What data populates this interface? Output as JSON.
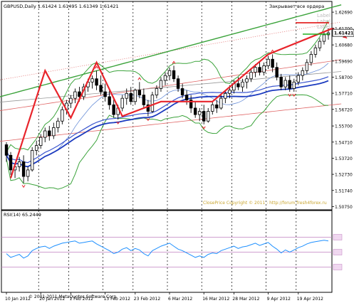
{
  "header": {
    "symbol_line": "GBPUSD,Daily  1.61424 1.61495 1.61349 1.61421",
    "close_all_label": "Закрывает все ордера"
  },
  "labels_box": [
    "Label",
    "Label",
    "Label"
  ],
  "current_price": "1.61421",
  "watermark": "ClosePrice Copyright © 2011 : http://forum.fresh4forex.ru",
  "copyright": "© 2001-2011 MetaQuotes Software Corp.",
  "colors": {
    "bull": "#ffffff",
    "bear": "#000000",
    "zigzag": "#e8242b",
    "ma_blue": "#1c3bbf",
    "bands_green": "#3ba33b",
    "gold": "#d4a531",
    "grid": "#888888",
    "rsi": "#1e90ff",
    "rsi_levels": "#c080c0"
  },
  "chart_data": [
    {
      "type": "candlestick",
      "title": "GBPUSD,Daily",
      "ylim": [
        1.5055,
        1.6335
      ],
      "y_ticks": [
        1.6269,
        1.617,
        1.6068,
        1.5969,
        1.587,
        1.5771,
        1.5672,
        1.557,
        1.5471,
        1.5372,
        1.5273,
        1.5174,
        1.5075
      ],
      "x_ticks": [
        "10 Jan 2012",
        "20 Jan 2012",
        "1 Feb 2012",
        "13 Feb 2012",
        "23 Feb 2012",
        "6 Mar 2012",
        "16 Mar 2012",
        "28 Mar 2012",
        "9 Apr 2012",
        "19 Apr 2012"
      ],
      "current_price": 1.61421,
      "candles": [
        [
          1.5455,
          1.547,
          1.535,
          1.539
        ],
        [
          1.539,
          1.541,
          1.527,
          1.53
        ],
        [
          1.53,
          1.534,
          1.525,
          1.532
        ],
        [
          1.532,
          1.538,
          1.529,
          1.535
        ],
        [
          1.535,
          1.539,
          1.522,
          1.526
        ],
        [
          1.526,
          1.532,
          1.523,
          1.53
        ],
        [
          1.53,
          1.544,
          1.529,
          1.542
        ],
        [
          1.542,
          1.548,
          1.539,
          1.545
        ],
        [
          1.545,
          1.552,
          1.543,
          1.55
        ],
        [
          1.55,
          1.556,
          1.547,
          1.554
        ],
        [
          1.554,
          1.557,
          1.548,
          1.551
        ],
        [
          1.551,
          1.559,
          1.549,
          1.556
        ],
        [
          1.556,
          1.562,
          1.553,
          1.56
        ],
        [
          1.56,
          1.569,
          1.558,
          1.567
        ],
        [
          1.567,
          1.573,
          1.564,
          1.571
        ],
        [
          1.571,
          1.576,
          1.568,
          1.574
        ],
        [
          1.574,
          1.58,
          1.571,
          1.578
        ],
        [
          1.578,
          1.581,
          1.572,
          1.575
        ],
        [
          1.575,
          1.583,
          1.573,
          1.581
        ],
        [
          1.581,
          1.586,
          1.578,
          1.584
        ],
        [
          1.584,
          1.588,
          1.58,
          1.586
        ],
        [
          1.586,
          1.591,
          1.579,
          1.582
        ],
        [
          1.582,
          1.588,
          1.576,
          1.578
        ],
        [
          1.578,
          1.583,
          1.572,
          1.575
        ],
        [
          1.575,
          1.579,
          1.567,
          1.57
        ],
        [
          1.57,
          1.574,
          1.562,
          1.564
        ],
        [
          1.564,
          1.57,
          1.561,
          1.568
        ],
        [
          1.568,
          1.576,
          1.566,
          1.574
        ],
        [
          1.574,
          1.58,
          1.57,
          1.577
        ],
        [
          1.577,
          1.581,
          1.57,
          1.572
        ],
        [
          1.572,
          1.58,
          1.57,
          1.579
        ],
        [
          1.579,
          1.584,
          1.574,
          1.576
        ],
        [
          1.576,
          1.58,
          1.568,
          1.57
        ],
        [
          1.57,
          1.573,
          1.563,
          1.566
        ],
        [
          1.566,
          1.578,
          1.565,
          1.576
        ],
        [
          1.576,
          1.582,
          1.574,
          1.58
        ],
        [
          1.58,
          1.587,
          1.578,
          1.585
        ],
        [
          1.585,
          1.59,
          1.582,
          1.588
        ],
        [
          1.588,
          1.593,
          1.585,
          1.591
        ],
        [
          1.591,
          1.594,
          1.584,
          1.586
        ],
        [
          1.586,
          1.588,
          1.578,
          1.58
        ],
        [
          1.58,
          1.583,
          1.574,
          1.576
        ],
        [
          1.576,
          1.579,
          1.57,
          1.573
        ],
        [
          1.573,
          1.576,
          1.565,
          1.568
        ],
        [
          1.568,
          1.572,
          1.562,
          1.564
        ],
        [
          1.564,
          1.568,
          1.56,
          1.566
        ],
        [
          1.566,
          1.57,
          1.558,
          1.56
        ],
        [
          1.56,
          1.568,
          1.559,
          1.566
        ],
        [
          1.566,
          1.572,
          1.564,
          1.57
        ],
        [
          1.57,
          1.573,
          1.565,
          1.568
        ],
        [
          1.568,
          1.576,
          1.567,
          1.574
        ],
        [
          1.574,
          1.579,
          1.571,
          1.577
        ],
        [
          1.577,
          1.582,
          1.574,
          1.579
        ],
        [
          1.579,
          1.585,
          1.577,
          1.583
        ],
        [
          1.583,
          1.587,
          1.579,
          1.581
        ],
        [
          1.581,
          1.586,
          1.578,
          1.584
        ],
        [
          1.584,
          1.588,
          1.58,
          1.586
        ],
        [
          1.586,
          1.592,
          1.584,
          1.59
        ],
        [
          1.59,
          1.595,
          1.587,
          1.593
        ],
        [
          1.593,
          1.597,
          1.588,
          1.59
        ],
        [
          1.59,
          1.596,
          1.588,
          1.594
        ],
        [
          1.594,
          1.6,
          1.592,
          1.598
        ],
        [
          1.598,
          1.601,
          1.59,
          1.593
        ],
        [
          1.593,
          1.596,
          1.585,
          1.587
        ],
        [
          1.587,
          1.589,
          1.579,
          1.581
        ],
        [
          1.581,
          1.587,
          1.579,
          1.585
        ],
        [
          1.585,
          1.588,
          1.578,
          1.58
        ],
        [
          1.58,
          1.586,
          1.578,
          1.584
        ],
        [
          1.584,
          1.59,
          1.582,
          1.588
        ],
        [
          1.588,
          1.593,
          1.585,
          1.591
        ],
        [
          1.591,
          1.598,
          1.589,
          1.596
        ],
        [
          1.596,
          1.603,
          1.594,
          1.601
        ],
        [
          1.601,
          1.607,
          1.599,
          1.605
        ],
        [
          1.605,
          1.611,
          1.603,
          1.609
        ],
        [
          1.609,
          1.615,
          1.607,
          1.613
        ],
        [
          1.613,
          1.617,
          1.61,
          1.6142
        ]
      ],
      "zigzag": [
        [
          1,
          1.525
        ],
        [
          9,
          1.591
        ],
        [
          15,
          1.562
        ],
        [
          21,
          1.596
        ],
        [
          27,
          1.563
        ],
        [
          36,
          1.572
        ],
        [
          48,
          1.572
        ],
        [
          61,
          1.601
        ],
        [
          76,
          1.617
        ]
      ]
    },
    {
      "type": "line",
      "title": "RSI(14) 65.2449",
      "ylim": [
        0,
        100
      ],
      "levels": [
        70,
        50,
        30
      ],
      "rsi": [
        48,
        43,
        45,
        47,
        42,
        45,
        52,
        55,
        57,
        58,
        55,
        58,
        60,
        62,
        63,
        64,
        65,
        62,
        63,
        64,
        65,
        61,
        58,
        55,
        52,
        48,
        50,
        54,
        56,
        52,
        55,
        53,
        48,
        45,
        52,
        55,
        58,
        60,
        62,
        58,
        54,
        52,
        49,
        46,
        43,
        45,
        43,
        47,
        49,
        48,
        52,
        54,
        56,
        58,
        55,
        57,
        58,
        60,
        62,
        59,
        61,
        63,
        58,
        54,
        49,
        53,
        50,
        53,
        56,
        58,
        61,
        63,
        64,
        65,
        66,
        65
      ]
    }
  ]
}
